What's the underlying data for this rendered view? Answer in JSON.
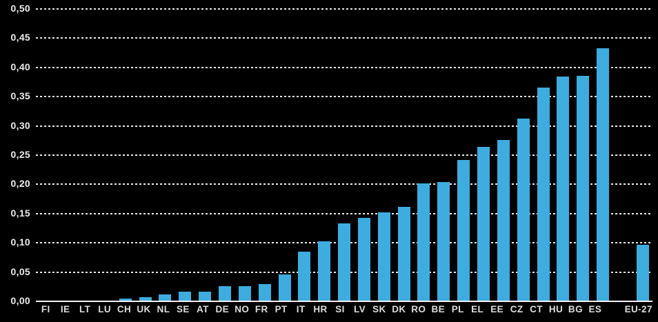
{
  "chart_data": {
    "type": "bar",
    "title": "",
    "xlabel": "",
    "ylabel": "",
    "categories": [
      "FI",
      "IE",
      "LT",
      "LU",
      "CH",
      "UK",
      "NL",
      "SE",
      "AT",
      "DE",
      "NO",
      "FR",
      "PT",
      "IT",
      "HR",
      "SI",
      "LV",
      "SK",
      "DK",
      "RO",
      "BE",
      "PL",
      "EL",
      "EE",
      "CZ",
      "CT",
      "HU",
      "BG",
      "ES",
      "EU-27"
    ],
    "values": [
      0.0,
      0.0,
      0.0,
      0.0,
      0.005,
      0.007,
      0.012,
      0.016,
      0.017,
      0.026,
      0.026,
      0.029,
      0.046,
      0.085,
      0.103,
      0.133,
      0.143,
      0.152,
      0.161,
      0.202,
      0.204,
      0.242,
      0.264,
      0.276,
      0.313,
      0.365,
      0.384,
      0.386,
      0.433,
      0.097
    ],
    "ylim": [
      0,
      0.5
    ],
    "y_tick_step": 0.05,
    "y_tick_labels": [
      "0,00",
      "0,05",
      "0,10",
      "0,15",
      "0,20",
      "0,25",
      "0,30",
      "0,35",
      "0,40",
      "0,45",
      "0,50"
    ],
    "grid": "horizontal-dotted",
    "legend": "none",
    "gap_before_category": "EU-27",
    "colors": {
      "bar": "#3EACDF",
      "background": "#000000",
      "grid_line": "#EBEBEB",
      "axis_line": "#F5F5F5",
      "tick_label": "#ECECEC",
      "category_label": "#DEDEDE"
    }
  }
}
